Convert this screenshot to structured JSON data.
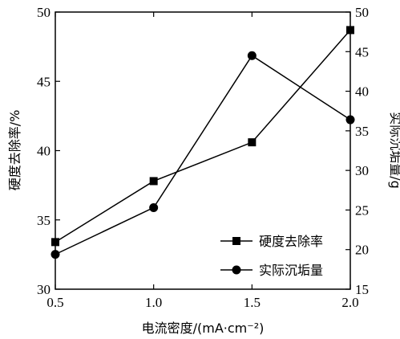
{
  "chart_data": {
    "type": "line",
    "x": [
      0.5,
      1.0,
      1.5,
      2.0
    ],
    "xlabel": "电流密度/(mA·cm⁻²)",
    "xlim": [
      0.5,
      2.0
    ],
    "xticks": [
      "0.5",
      "1.0",
      "1.5",
      "2.0"
    ],
    "ylabel_left": "硬度去除率/%",
    "ylim_left": [
      30,
      50
    ],
    "yticks_left": [
      "30",
      "35",
      "40",
      "45",
      "50"
    ],
    "ylabel_right": "实际沉垢量/g",
    "ylim_right": [
      15,
      50
    ],
    "yticks_right": [
      "15",
      "20",
      "25",
      "30",
      "35",
      "40",
      "45",
      "50"
    ],
    "grid": false,
    "legend_position": "bottom-right",
    "series": [
      {
        "name": "硬度去除率",
        "axis": "left",
        "marker": "square",
        "values": [
          33.4,
          37.8,
          40.6,
          48.7
        ]
      },
      {
        "name": "实际沉垢量",
        "axis": "right",
        "marker": "circle",
        "values": [
          19.4,
          25.3,
          44.5,
          36.4
        ]
      }
    ]
  }
}
